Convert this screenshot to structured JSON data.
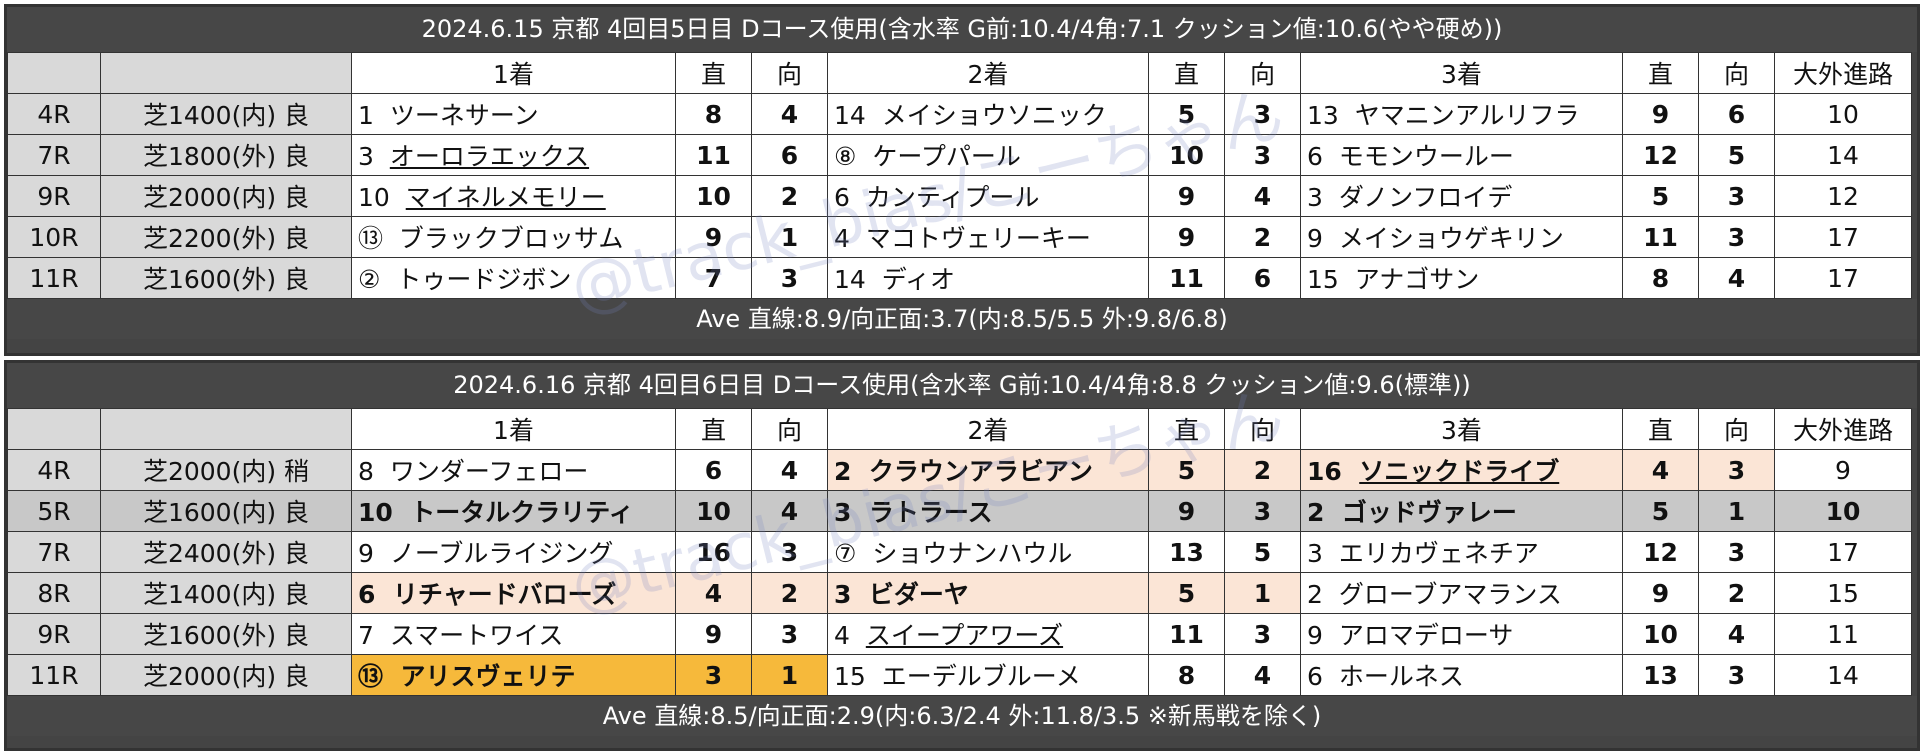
{
  "watermark": "@track_bias/こーちゃん",
  "headers": {
    "first": "1着",
    "second": "2着",
    "third": "3着",
    "straight": "直",
    "facing": "向",
    "outside": "大外進路"
  },
  "day1": {
    "title": "2024.6.15 京都 4回目5日目 Dコース使用(含水率 G前:10.4/4角:7.1 クッション値:10.6(やや硬め))",
    "ave": "Ave 直線:8.9/向正面:3.7(内:8.5/5.5 外:9.8/6.8)",
    "rows": [
      {
        "race": "4R",
        "course": "芝1400(内) 良",
        "p1": {
          "no": "1",
          "name": "ツーネサーン"
        },
        "p1s": "8",
        "p1f": "4",
        "p2": {
          "no": "14",
          "name": "メイショウソニック"
        },
        "p2s": "5",
        "p2f": "3",
        "p3": {
          "no": "13",
          "name": "ヤマニンアルリフラ"
        },
        "p3s": "9",
        "p3f": "6",
        "out": "10"
      },
      {
        "race": "7R",
        "course": "芝1800(外) 良",
        "p1": {
          "no": "3",
          "name": "オーロラエックス"
        },
        "p1s": "11",
        "p1f": "6",
        "p2": {
          "no": "⑧",
          "name": "ケープパール"
        },
        "p2s": "10",
        "p2f": "3",
        "p3": {
          "no": "6",
          "name": "モモンウールー"
        },
        "p3s": "12",
        "p3f": "5",
        "out": "14"
      },
      {
        "race": "9R",
        "course": "芝2000(内) 良",
        "p1": {
          "no": "10",
          "name": "マイネルメモリー"
        },
        "p1s": "10",
        "p1f": "2",
        "p2": {
          "no": "6",
          "name": "カンティプール"
        },
        "p2s": "9",
        "p2f": "4",
        "p3": {
          "no": "3",
          "name": "ダノンフロイデ"
        },
        "p3s": "5",
        "p3f": "3",
        "out": "12"
      },
      {
        "race": "10R",
        "course": "芝2200(外) 良",
        "p1": {
          "no": "⑬",
          "name": "ブラックブロッサム"
        },
        "p1s": "9",
        "p1f": "1",
        "p2": {
          "no": "4",
          "name": "マコトヴェリーキー"
        },
        "p2s": "9",
        "p2f": "2",
        "p3": {
          "no": "9",
          "name": "メイショウゲキリン"
        },
        "p3s": "11",
        "p3f": "3",
        "out": "17"
      },
      {
        "race": "11R",
        "course": "芝1600(外) 良",
        "p1": {
          "no": "②",
          "name": "トゥードジボン"
        },
        "p1s": "7",
        "p1f": "3",
        "p2": {
          "no": "14",
          "name": "ディオ"
        },
        "p2s": "11",
        "p2f": "6",
        "p3": {
          "no": "15",
          "name": "アナゴサン"
        },
        "p3s": "8",
        "p3f": "4",
        "out": "17"
      }
    ]
  },
  "day2": {
    "title": "2024.6.16 京都 4回目6日目 Dコース使用(含水率 G前:10.4/4角:8.8 クッション値:9.6(標準))",
    "ave": "Ave 直線:8.5/向正面:2.9(内:6.3/2.4 外:11.8/3.5 ※新馬戦を除く)",
    "rows": [
      {
        "race": "4R",
        "course": "芝2000(内) 稍",
        "p1": {
          "no": "8",
          "name": "ワンダーフェロー"
        },
        "p1s": "6",
        "p1f": "4",
        "p2": {
          "no": "2",
          "name": "クラウンアラビアン"
        },
        "p2s": "5",
        "p2f": "2",
        "p3": {
          "no": "16",
          "name": "ソニックドライブ"
        },
        "p3s": "4",
        "p3f": "3",
        "out": "9"
      },
      {
        "race": "5R",
        "course": "芝1600(内) 良",
        "p1": {
          "no": "10",
          "name": "トータルクラリティ"
        },
        "p1s": "10",
        "p1f": "4",
        "p2": {
          "no": "3",
          "name": "ラトラース"
        },
        "p2s": "9",
        "p2f": "3",
        "p3": {
          "no": "2",
          "name": "ゴッドヴァレー"
        },
        "p3s": "5",
        "p3f": "1",
        "out": "10"
      },
      {
        "race": "7R",
        "course": "芝2400(外) 良",
        "p1": {
          "no": "9",
          "name": "ノーブルライジング"
        },
        "p1s": "16",
        "p1f": "3",
        "p2": {
          "no": "⑦",
          "name": "ショウナンハウル"
        },
        "p2s": "13",
        "p2f": "5",
        "p3": {
          "no": "3",
          "name": "エリカヴェネチア"
        },
        "p3s": "12",
        "p3f": "3",
        "out": "17"
      },
      {
        "race": "8R",
        "course": "芝1400(内) 良",
        "p1": {
          "no": "6",
          "name": "リチャードバローズ"
        },
        "p1s": "4",
        "p1f": "2",
        "p2": {
          "no": "3",
          "name": "ビダーヤ"
        },
        "p2s": "5",
        "p2f": "1",
        "p3": {
          "no": "2",
          "name": "グローブアマランス"
        },
        "p3s": "9",
        "p3f": "2",
        "out": "15"
      },
      {
        "race": "9R",
        "course": "芝1600(外) 良",
        "p1": {
          "no": "7",
          "name": "スマートワイス"
        },
        "p1s": "9",
        "p1f": "3",
        "p2": {
          "no": "4",
          "name": "スイープアワーズ"
        },
        "p2s": "11",
        "p2f": "3",
        "p3": {
          "no": "9",
          "name": "アロマデローサ"
        },
        "p3s": "10",
        "p3f": "4",
        "out": "11"
      },
      {
        "race": "11R",
        "course": "芝2000(内) 良",
        "p1": {
          "no": "⑬",
          "name": "アリスヴェリテ"
        },
        "p1s": "3",
        "p1f": "1",
        "p2": {
          "no": "15",
          "name": "エーデルブルーメ"
        },
        "p2s": "8",
        "p2f": "4",
        "p3": {
          "no": "6",
          "name": "ホールネス"
        },
        "p3s": "13",
        "p3f": "3",
        "out": "14"
      }
    ]
  }
}
